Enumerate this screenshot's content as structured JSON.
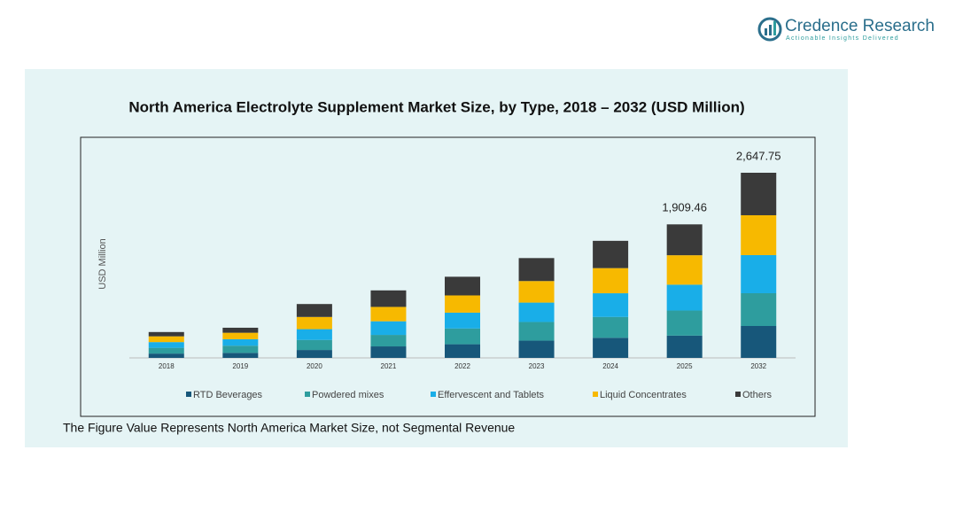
{
  "header": {
    "brand": "Credence Research",
    "tagline": "Actionable Insights Delivered"
  },
  "footnote": "The Figure Value Represents North America Market Size, not Segmental Revenue",
  "chart_data": {
    "type": "stacked_bar",
    "title": "North America Electrolyte Supplement Market Size, by Type, 2018 – 2032 (USD Million)",
    "y_label": "USD Million",
    "categories": [
      "2018",
      "2019",
      "2020",
      "2021",
      "2022",
      "2023",
      "2024",
      "2025",
      "2032"
    ],
    "series": [
      {
        "name": "RTD Beverages",
        "color": "#17577a",
        "values": [
          61.6,
          71.9,
          113,
          164.3,
          195.1,
          246.5,
          287.6,
          318.2,
          456.1
        ]
      },
      {
        "name": "Powdered mixes",
        "color": "#2e9d9e",
        "values": [
          82.2,
          102.7,
          143.8,
          164.3,
          225.9,
          267,
          297.8,
          359.3,
          468.8
        ]
      },
      {
        "name": "Effervescent and Tablets",
        "color": "#19aee8",
        "values": [
          82.2,
          92.4,
          154,
          195.1,
          225.9,
          277.3,
          338.9,
          369.6,
          544.8
        ]
      },
      {
        "name": "Liquid Concentrates",
        "color": "#f7b900",
        "values": [
          82.2,
          92.4,
          174.6,
          205.4,
          246.5,
          308.1,
          359.5,
          420.9,
          570.2
        ]
      },
      {
        "name": "Others",
        "color": "#3a3a3a",
        "values": [
          61.6,
          71.9,
          184.9,
          236.2,
          267,
          328.6,
          390.3,
          441.46,
          607.85
        ]
      }
    ],
    "totals": [
      null,
      null,
      null,
      null,
      null,
      null,
      null,
      1909.46,
      2647.75
    ],
    "total_labels": [
      null,
      null,
      null,
      null,
      null,
      null,
      null,
      "1,909.46",
      "2,647.75"
    ],
    "legend": "bottom"
  }
}
